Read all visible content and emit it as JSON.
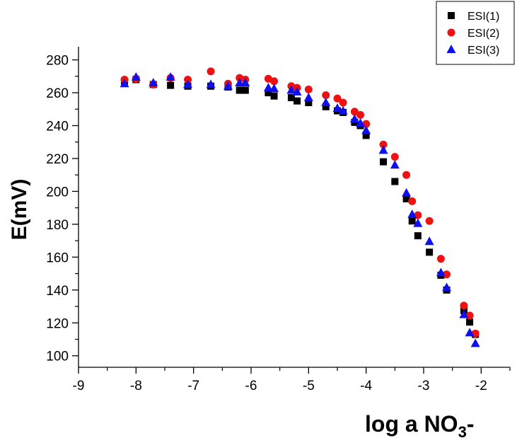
{
  "chart_data": {
    "type": "scatter",
    "xlabel": "log a NO",
    "xlabel_sub": "3",
    "xlabel_suffix": "-",
    "ylabel": "E(mV)",
    "xlim": [
      -9,
      -1.5
    ],
    "ylim": [
      93,
      288
    ],
    "x_ticks": [
      -9,
      -8,
      -7,
      -6,
      -5,
      -4,
      -3,
      -2
    ],
    "y_ticks": [
      100,
      120,
      140,
      160,
      180,
      200,
      220,
      240,
      260,
      280
    ],
    "grid": false,
    "legend_position": "top-right",
    "series": [
      {
        "name": "ESI(1)",
        "marker": "square",
        "color": "#000000",
        "points": [
          [
            -8.2,
            267
          ],
          [
            -8.0,
            268
          ],
          [
            -7.7,
            265
          ],
          [
            -7.4,
            264.5
          ],
          [
            -7.1,
            264
          ],
          [
            -6.7,
            264
          ],
          [
            -6.4,
            263.5
          ],
          [
            -6.2,
            261.5
          ],
          [
            -6.1,
            261.5
          ],
          [
            -5.7,
            260
          ],
          [
            -5.6,
            258
          ],
          [
            -5.3,
            257
          ],
          [
            -5.2,
            255
          ],
          [
            -5.0,
            254
          ],
          [
            -4.7,
            251.5
          ],
          [
            -4.5,
            249
          ],
          [
            -4.4,
            248
          ],
          [
            -4.2,
            242
          ],
          [
            -4.1,
            240
          ],
          [
            -4.0,
            234
          ],
          [
            -3.7,
            218
          ],
          [
            -3.5,
            206
          ],
          [
            -3.3,
            195.5
          ],
          [
            -3.2,
            182
          ],
          [
            -3.1,
            173
          ],
          [
            -2.9,
            163
          ],
          [
            -2.7,
            149
          ],
          [
            -2.6,
            140
          ],
          [
            -2.3,
            127.5
          ],
          [
            -2.2,
            120.5
          ],
          [
            -2.1,
            113
          ]
        ]
      },
      {
        "name": "ESI(2)",
        "marker": "circle",
        "color": "#ee1111",
        "points": [
          [
            -8.2,
            268
          ],
          [
            -8.0,
            268.5
          ],
          [
            -7.7,
            265
          ],
          [
            -7.4,
            269
          ],
          [
            -7.1,
            268
          ],
          [
            -6.7,
            273
          ],
          [
            -6.4,
            265.5
          ],
          [
            -6.2,
            269
          ],
          [
            -6.1,
            268
          ],
          [
            -5.7,
            268.5
          ],
          [
            -5.6,
            267
          ],
          [
            -5.3,
            264
          ],
          [
            -5.2,
            263
          ],
          [
            -5.0,
            262
          ],
          [
            -4.7,
            258.5
          ],
          [
            -4.5,
            256.5
          ],
          [
            -4.4,
            254
          ],
          [
            -4.2,
            248.5
          ],
          [
            -4.1,
            246.5
          ],
          [
            -4.0,
            241
          ],
          [
            -3.7,
            228.5
          ],
          [
            -3.5,
            221
          ],
          [
            -3.3,
            210
          ],
          [
            -3.2,
            194
          ],
          [
            -3.1,
            185.5
          ],
          [
            -2.9,
            182
          ],
          [
            -2.7,
            159
          ],
          [
            -2.6,
            149.5
          ],
          [
            -2.3,
            130.5
          ],
          [
            -2.2,
            124.5
          ],
          [
            -2.1,
            113.5
          ]
        ]
      },
      {
        "name": "ESI(3)",
        "marker": "triangle",
        "color": "#1010ee",
        "points": [
          [
            -8.2,
            265.5
          ],
          [
            -8.0,
            269.5
          ],
          [
            -7.7,
            266
          ],
          [
            -7.4,
            269.5
          ],
          [
            -7.1,
            265
          ],
          [
            -6.7,
            265
          ],
          [
            -6.4,
            264
          ],
          [
            -6.2,
            266
          ],
          [
            -6.1,
            266
          ],
          [
            -5.7,
            263
          ],
          [
            -5.6,
            262.5
          ],
          [
            -5.3,
            261.5
          ],
          [
            -5.2,
            260.5
          ],
          [
            -5.0,
            257
          ],
          [
            -4.7,
            254
          ],
          [
            -4.5,
            250.5
          ],
          [
            -4.4,
            249
          ],
          [
            -4.2,
            244
          ],
          [
            -4.1,
            241.5
          ],
          [
            -4.0,
            237
          ],
          [
            -3.7,
            225
          ],
          [
            -3.5,
            216
          ],
          [
            -3.3,
            199
          ],
          [
            -3.2,
            186
          ],
          [
            -3.1,
            180.5
          ],
          [
            -2.9,
            169.5
          ],
          [
            -2.7,
            150.5
          ],
          [
            -2.6,
            141.5
          ],
          [
            -2.3,
            125
          ],
          [
            -2.2,
            114
          ],
          [
            -2.1,
            107.5
          ]
        ]
      }
    ]
  }
}
